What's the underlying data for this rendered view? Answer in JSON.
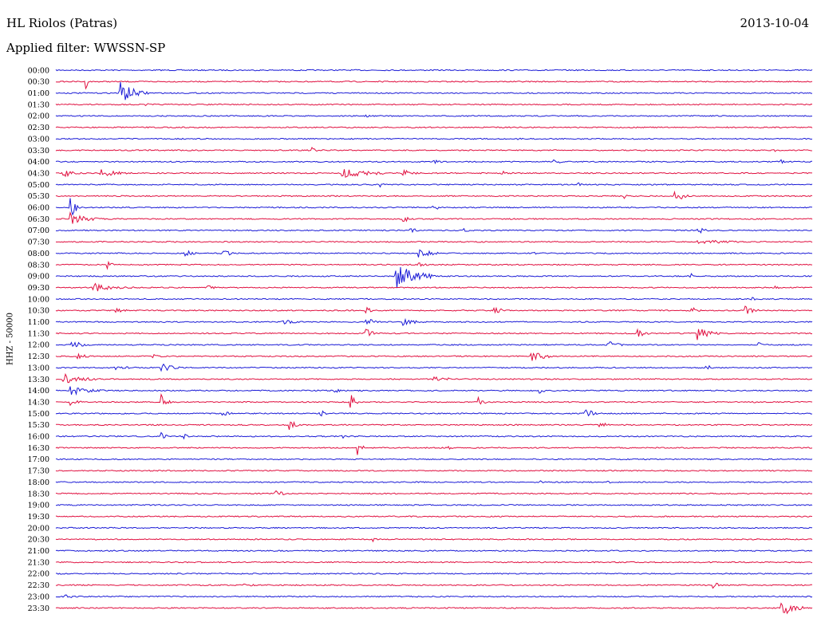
{
  "header": {
    "station": "HL Riolos (Patras)",
    "date": "2013-10-04",
    "filter": "Applied filter: WWSSN-SP"
  },
  "chart_data": {
    "type": "line",
    "ylabel": "HHZ - 50000",
    "colors": {
      "odd": "#1b1bd6",
      "even": "#e01040"
    },
    "rows": [
      {
        "label": "00:00",
        "color": "#1b1bd6",
        "events": []
      },
      {
        "label": "00:30",
        "color": "#e01040",
        "events": [
          {
            "t": 0.04,
            "a": 10,
            "d": 0.002
          }
        ]
      },
      {
        "label": "01:00",
        "color": "#1b1bd6",
        "events": [
          {
            "t": 0.085,
            "a": 15,
            "d": 0.035
          }
        ]
      },
      {
        "label": "01:30",
        "color": "#e01040",
        "events": [
          {
            "t": 0.12,
            "a": 2,
            "d": 0.01
          }
        ]
      },
      {
        "label": "02:00",
        "color": "#1b1bd6",
        "events": [
          {
            "t": 0.41,
            "a": 2,
            "d": 0.01
          }
        ]
      },
      {
        "label": "02:30",
        "color": "#e01040",
        "events": []
      },
      {
        "label": "03:00",
        "color": "#1b1bd6",
        "events": [
          {
            "t": 0.61,
            "a": 2,
            "d": 0.01
          }
        ]
      },
      {
        "label": "03:30",
        "color": "#e01040",
        "events": [
          {
            "t": 0.34,
            "a": 4,
            "d": 0.01
          },
          {
            "t": 0.95,
            "a": 2,
            "d": 0.01
          }
        ]
      },
      {
        "label": "04:00",
        "color": "#1b1bd6",
        "events": [
          {
            "t": 0.5,
            "a": 3,
            "d": 0.02
          },
          {
            "t": 0.66,
            "a": 3,
            "d": 0.02
          },
          {
            "t": 0.96,
            "a": 4,
            "d": 0.01
          }
        ]
      },
      {
        "label": "04:30",
        "color": "#e01040",
        "events": [
          {
            "t": 0.01,
            "a": 5,
            "d": 0.03
          },
          {
            "t": 0.06,
            "a": 5,
            "d": 0.05
          },
          {
            "t": 0.38,
            "a": 6,
            "d": 0.08
          },
          {
            "t": 0.46,
            "a": 5,
            "d": 0.03
          },
          {
            "t": 0.59,
            "a": 4,
            "d": 0.02
          }
        ]
      },
      {
        "label": "05:00",
        "color": "#1b1bd6",
        "events": [
          {
            "t": 0.43,
            "a": 3,
            "d": 0.01
          },
          {
            "t": 0.69,
            "a": 3,
            "d": 0.01
          }
        ]
      },
      {
        "label": "05:30",
        "color": "#e01040",
        "events": [
          {
            "t": 0.75,
            "a": 4,
            "d": 0.01
          },
          {
            "t": 0.82,
            "a": 10,
            "d": 0.015
          }
        ]
      },
      {
        "label": "06:00",
        "color": "#1b1bd6",
        "events": [
          {
            "t": 0.02,
            "a": 16,
            "d": 0.01
          },
          {
            "t": 0.5,
            "a": 3,
            "d": 0.03
          }
        ]
      },
      {
        "label": "06:30",
        "color": "#e01040",
        "events": [
          {
            "t": 0.02,
            "a": 8,
            "d": 0.04
          },
          {
            "t": 0.46,
            "a": 4,
            "d": 0.02
          }
        ]
      },
      {
        "label": "07:00",
        "color": "#1b1bd6",
        "events": [
          {
            "t": 0.47,
            "a": 5,
            "d": 0.01
          },
          {
            "t": 0.54,
            "a": 4,
            "d": 0.01
          },
          {
            "t": 0.85,
            "a": 4,
            "d": 0.02
          }
        ]
      },
      {
        "label": "07:30",
        "color": "#e01040",
        "events": [
          {
            "t": 0.85,
            "a": 3,
            "d": 0.1
          }
        ]
      },
      {
        "label": "08:00",
        "color": "#1b1bd6",
        "events": [
          {
            "t": 0.17,
            "a": 5,
            "d": 0.02
          },
          {
            "t": 0.22,
            "a": 7,
            "d": 0.02
          },
          {
            "t": 0.48,
            "a": 7,
            "d": 0.03
          },
          {
            "t": 0.63,
            "a": 3,
            "d": 0.01
          }
        ]
      },
      {
        "label": "08:30",
        "color": "#e01040",
        "events": [
          {
            "t": 0.07,
            "a": 5,
            "d": 0.01
          },
          {
            "t": 0.48,
            "a": 3,
            "d": 0.02
          }
        ]
      },
      {
        "label": "09:00",
        "color": "#1b1bd6",
        "events": [
          {
            "t": 0.45,
            "a": 18,
            "d": 0.05
          },
          {
            "t": 0.84,
            "a": 4,
            "d": 0.01
          }
        ]
      },
      {
        "label": "09:30",
        "color": "#e01040",
        "events": [
          {
            "t": 0.05,
            "a": 6,
            "d": 0.06
          },
          {
            "t": 0.2,
            "a": 3,
            "d": 0.02
          },
          {
            "t": 0.95,
            "a": 3,
            "d": 0.01
          }
        ]
      },
      {
        "label": "10:00",
        "color": "#1b1bd6",
        "events": [
          {
            "t": 0.92,
            "a": 3,
            "d": 0.01
          }
        ]
      },
      {
        "label": "10:30",
        "color": "#e01040",
        "events": [
          {
            "t": 0.08,
            "a": 3,
            "d": 0.03
          },
          {
            "t": 0.41,
            "a": 6,
            "d": 0.01
          },
          {
            "t": 0.58,
            "a": 5,
            "d": 0.02
          },
          {
            "t": 0.84,
            "a": 5,
            "d": 0.02
          },
          {
            "t": 0.91,
            "a": 7,
            "d": 0.02
          }
        ]
      },
      {
        "label": "11:00",
        "color": "#1b1bd6",
        "events": [
          {
            "t": 0.3,
            "a": 4,
            "d": 0.03
          },
          {
            "t": 0.41,
            "a": 6,
            "d": 0.02
          },
          {
            "t": 0.46,
            "a": 5,
            "d": 0.03
          }
        ]
      },
      {
        "label": "11:30",
        "color": "#e01040",
        "events": [
          {
            "t": 0.41,
            "a": 6,
            "d": 0.02
          },
          {
            "t": 0.77,
            "a": 5,
            "d": 0.02
          },
          {
            "t": 0.85,
            "a": 9,
            "d": 0.03
          }
        ]
      },
      {
        "label": "12:00",
        "color": "#1b1bd6",
        "events": [
          {
            "t": 0.02,
            "a": 6,
            "d": 0.03
          },
          {
            "t": 0.73,
            "a": 5,
            "d": 0.03
          },
          {
            "t": 0.93,
            "a": 3,
            "d": 0.01
          }
        ]
      },
      {
        "label": "12:30",
        "color": "#e01040",
        "events": [
          {
            "t": 0.03,
            "a": 5,
            "d": 0.02
          },
          {
            "t": 0.13,
            "a": 5,
            "d": 0.01
          },
          {
            "t": 0.63,
            "a": 6,
            "d": 0.04
          }
        ]
      },
      {
        "label": "13:00",
        "color": "#1b1bd6",
        "events": [
          {
            "t": 0.08,
            "a": 3,
            "d": 0.04
          },
          {
            "t": 0.14,
            "a": 6,
            "d": 0.03
          },
          {
            "t": 0.86,
            "a": 4,
            "d": 0.02
          }
        ]
      },
      {
        "label": "13:30",
        "color": "#e01040",
        "events": [
          {
            "t": 0.01,
            "a": 7,
            "d": 0.05
          },
          {
            "t": 0.5,
            "a": 3,
            "d": 0.06
          }
        ]
      },
      {
        "label": "14:00",
        "color": "#1b1bd6",
        "events": [
          {
            "t": 0.02,
            "a": 6,
            "d": 0.05
          },
          {
            "t": 0.37,
            "a": 3,
            "d": 0.01
          },
          {
            "t": 0.64,
            "a": 4,
            "d": 0.01
          }
        ]
      },
      {
        "label": "14:30",
        "color": "#e01040",
        "events": [
          {
            "t": 0.02,
            "a": 5,
            "d": 0.02
          },
          {
            "t": 0.14,
            "a": 11,
            "d": 0.01
          },
          {
            "t": 0.39,
            "a": 11,
            "d": 0.01
          },
          {
            "t": 0.56,
            "a": 7,
            "d": 0.01
          },
          {
            "t": 0.92,
            "a": 4,
            "d": 0.01
          }
        ]
      },
      {
        "label": "15:00",
        "color": "#1b1bd6",
        "events": [
          {
            "t": 0.22,
            "a": 4,
            "d": 0.02
          },
          {
            "t": 0.35,
            "a": 5,
            "d": 0.01
          },
          {
            "t": 0.7,
            "a": 7,
            "d": 0.02
          }
        ]
      },
      {
        "label": "15:30",
        "color": "#e01040",
        "events": [
          {
            "t": 0.31,
            "a": 8,
            "d": 0.01
          },
          {
            "t": 0.72,
            "a": 4,
            "d": 0.02
          }
        ]
      },
      {
        "label": "16:00",
        "color": "#1b1bd6",
        "events": [
          {
            "t": 0.14,
            "a": 5,
            "d": 0.01
          },
          {
            "t": 0.17,
            "a": 3,
            "d": 0.01
          },
          {
            "t": 0.38,
            "a": 3,
            "d": 0.01
          }
        ]
      },
      {
        "label": "16:30",
        "color": "#e01040",
        "events": [
          {
            "t": 0.4,
            "a": 10,
            "d": 0.01
          },
          {
            "t": 0.52,
            "a": 2,
            "d": 0.01
          }
        ]
      },
      {
        "label": "17:00",
        "color": "#1b1bd6",
        "events": []
      },
      {
        "label": "17:30",
        "color": "#e01040",
        "events": []
      },
      {
        "label": "18:00",
        "color": "#1b1bd6",
        "events": [
          {
            "t": 0.64,
            "a": 3,
            "d": 0.01
          },
          {
            "t": 0.73,
            "a": 4,
            "d": 0.01
          }
        ]
      },
      {
        "label": "18:30",
        "color": "#e01040",
        "events": [
          {
            "t": 0.29,
            "a": 4,
            "d": 0.03
          }
        ]
      },
      {
        "label": "19:00",
        "color": "#1b1bd6",
        "events": []
      },
      {
        "label": "19:30",
        "color": "#e01040",
        "events": []
      },
      {
        "label": "20:00",
        "color": "#1b1bd6",
        "events": []
      },
      {
        "label": "20:30",
        "color": "#e01040",
        "events": [
          {
            "t": 0.42,
            "a": 3,
            "d": 0.01
          }
        ]
      },
      {
        "label": "21:00",
        "color": "#1b1bd6",
        "events": []
      },
      {
        "label": "21:30",
        "color": "#e01040",
        "events": []
      },
      {
        "label": "22:00",
        "color": "#1b1bd6",
        "events": []
      },
      {
        "label": "22:30",
        "color": "#e01040",
        "events": [
          {
            "t": 0.25,
            "a": 3,
            "d": 0.03
          },
          {
            "t": 0.87,
            "a": 6,
            "d": 0.01
          }
        ]
      },
      {
        "label": "23:00",
        "color": "#1b1bd6",
        "events": [
          {
            "t": 0.01,
            "a": 5,
            "d": 0.02
          }
        ]
      },
      {
        "label": "23:30",
        "color": "#e01040",
        "events": [
          {
            "t": 0.96,
            "a": 12,
            "d": 0.03
          }
        ]
      }
    ]
  }
}
